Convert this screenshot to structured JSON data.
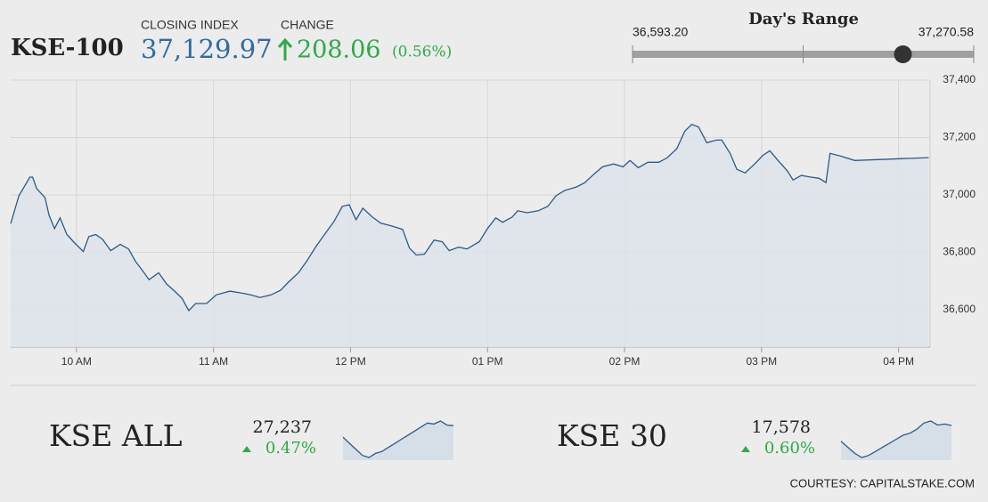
{
  "header": {
    "name": "KSE-100",
    "closing_label": "CLOSING INDEX",
    "closing_index": {
      "value": 37129.97,
      "label": "37,129.97"
    },
    "change_label": "CHANGE",
    "change": 208.06,
    "change_pct": {
      "value": 0.56,
      "label": "(0.56%)"
    },
    "day_range": {
      "title": "Day's Range",
      "low": {
        "value": 36593.2,
        "label": "36,593.20"
      },
      "high": {
        "value": 37270.58,
        "label": "37,270.58"
      }
    }
  },
  "chart_data": {
    "type": "line",
    "color": "#2b5a8a",
    "area_color": "#dde4eb",
    "grid": true,
    "x": [
      9.52,
      9.58,
      9.66,
      9.68,
      9.71,
      9.77,
      9.8,
      9.84,
      9.88,
      9.93,
      9.99,
      10.05,
      10.09,
      10.14,
      10.19,
      10.25,
      10.32,
      10.38,
      10.43,
      10.48,
      10.53,
      10.6,
      10.66,
      10.71,
      10.77,
      10.82,
      10.87,
      10.95,
      11.02,
      11.12,
      11.21,
      11.27,
      11.34,
      11.42,
      11.49,
      11.55,
      11.62,
      11.68,
      11.75,
      11.81,
      11.88,
      11.94,
      11.99,
      12.04,
      12.09,
      12.16,
      12.22,
      12.3,
      12.38,
      12.43,
      12.48,
      12.54,
      12.61,
      12.67,
      12.72,
      12.79,
      12.85,
      12.94,
      13.0,
      13.06,
      13.11,
      13.18,
      13.22,
      13.29,
      13.37,
      13.44,
      13.5,
      13.56,
      13.65,
      13.71,
      13.78,
      13.84,
      13.92,
      13.99,
      14.04,
      14.1,
      14.17,
      14.25,
      14.31,
      14.38,
      14.44,
      14.49,
      14.54,
      14.6,
      14.67,
      14.71,
      14.77,
      14.82,
      14.88,
      14.95,
      15.01,
      15.06,
      15.12,
      15.19,
      15.23,
      15.29,
      15.36,
      15.42,
      15.47,
      15.5,
      15.58,
      15.68,
      16.22
    ],
    "values": [
      36900,
      36997,
      37062,
      37062,
      37022,
      36991,
      36929,
      36883,
      36920,
      36862,
      36831,
      36803,
      36855,
      36862,
      36846,
      36806,
      36828,
      36812,
      36769,
      36738,
      36705,
      36729,
      36689,
      36668,
      36640,
      36597,
      36622,
      36622,
      36652,
      36665,
      36658,
      36652,
      36643,
      36652,
      36668,
      36698,
      36729,
      36769,
      36822,
      36862,
      36908,
      36960,
      36966,
      36914,
      36954,
      36923,
      36902,
      36892,
      36880,
      36815,
      36791,
      36794,
      36843,
      36837,
      36806,
      36818,
      36812,
      36837,
      36883,
      36920,
      36905,
      36923,
      36945,
      36938,
      36945,
      36960,
      36997,
      37015,
      37028,
      37043,
      37074,
      37098,
      37108,
      37098,
      37120,
      37095,
      37114,
      37114,
      37129,
      37160,
      37222,
      37246,
      37237,
      37182,
      37191,
      37191,
      37145,
      37089,
      37077,
      37108,
      37138,
      37154,
      37120,
      37083,
      37052,
      37068,
      37062,
      37058,
      37043,
      37145,
      37135,
      37120,
      37130
    ],
    "xlim": [
      9.52,
      16.23
    ],
    "xticks": [
      {
        "value": 10,
        "label": "10 AM"
      },
      {
        "value": 11,
        "label": "11 AM"
      },
      {
        "value": 12,
        "label": "12 PM"
      },
      {
        "value": 13,
        "label": "01 PM"
      },
      {
        "value": 14,
        "label": "02 PM"
      },
      {
        "value": 15,
        "label": "03 PM"
      },
      {
        "value": 16,
        "label": "04 PM"
      }
    ],
    "ylim": [
      36470,
      37400
    ],
    "yticks": [
      {
        "value": 36600,
        "label": "36,600"
      },
      {
        "value": 36800,
        "label": "36,800"
      },
      {
        "value": 37000,
        "label": "37,000"
      },
      {
        "value": 37200,
        "label": "37,200"
      },
      {
        "value": 37400,
        "label": "37,400"
      }
    ]
  },
  "indices": [
    {
      "name": "KSE ALL",
      "value": {
        "value": 27237,
        "label": "27,237"
      },
      "change": {
        "value": 0.47,
        "label": "0.47%"
      },
      "values": [
        27180,
        27150,
        27120,
        27090,
        27080,
        27100,
        27110,
        27130,
        27150,
        27170,
        27190,
        27210,
        27230,
        27250,
        27245,
        27260,
        27240,
        27237
      ]
    },
    {
      "name": "KSE 30",
      "value": {
        "value": 17578,
        "label": "17,578"
      },
      "change": {
        "value": 0.6,
        "label": "0.60%"
      },
      "values": [
        17500,
        17470,
        17440,
        17420,
        17430,
        17450,
        17470,
        17490,
        17510,
        17530,
        17540,
        17560,
        17590,
        17600,
        17580,
        17585,
        17578
      ]
    }
  ],
  "courtesy": "COURTESY: CAPITALSTAKE.COM"
}
